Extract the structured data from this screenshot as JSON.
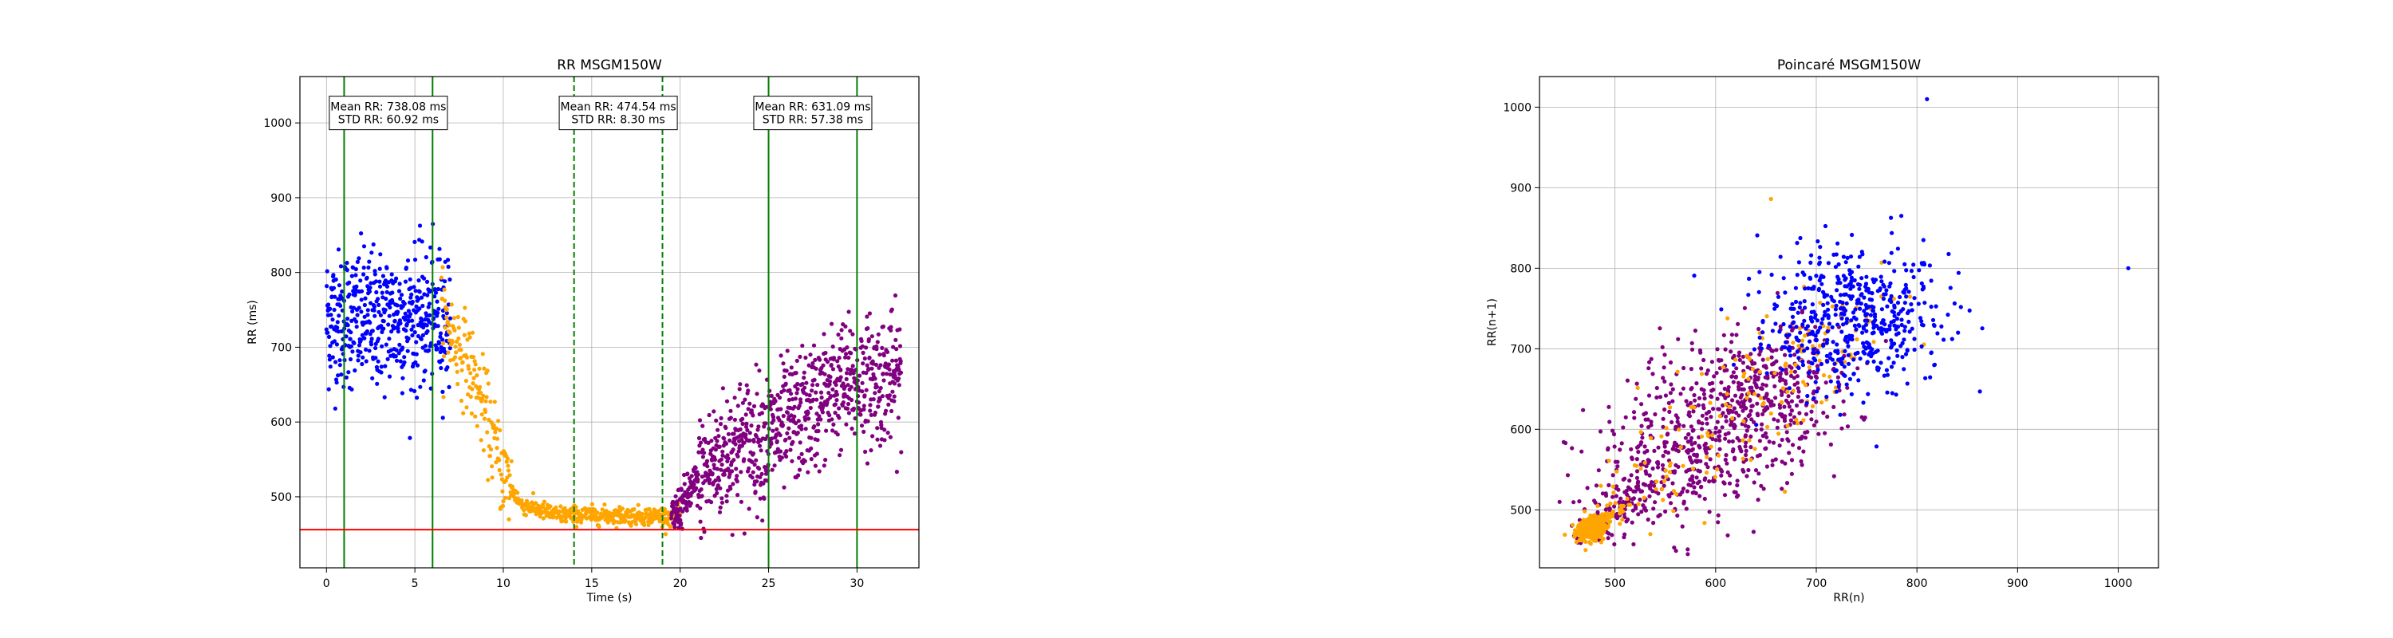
{
  "chart_data": [
    {
      "type": "scatter",
      "title": "RR MSGM150W",
      "xlabel": "Time (s)",
      "ylabel": "RR (ms)",
      "xlim": [
        -1.5,
        33.5
      ],
      "ylim": [
        405,
        1062
      ],
      "xticks": [
        0,
        5,
        10,
        15,
        20,
        25,
        30
      ],
      "yticks": [
        500,
        600,
        700,
        800,
        900,
        1000
      ],
      "grid": true,
      "series": [
        {
          "color": "#0000ff",
          "x_range": [
            0,
            7
          ],
          "y_center": 738,
          "y_spread": 61,
          "count": 520
        },
        {
          "color": "#ffa500",
          "x_range": [
            6.5,
            20
          ],
          "y_profile": [
            [
              6.5,
              740
            ],
            [
              8,
              680
            ],
            [
              9,
              610
            ],
            [
              10,
              530
            ],
            [
              11,
              490
            ],
            [
              13,
              476
            ],
            [
              20,
              474
            ]
          ],
          "count": 560
        },
        {
          "color": "#800080",
          "x_range": [
            19.5,
            32.5
          ],
          "y_profile": [
            [
              19.5,
              470
            ],
            [
              21,
              520
            ],
            [
              23,
              570
            ],
            [
              25,
              580
            ],
            [
              27,
              610
            ],
            [
              29,
              650
            ],
            [
              32.5,
              660
            ]
          ],
          "count": 900
        }
      ],
      "vertical_lines": [
        {
          "x": 1,
          "style": "solid",
          "color": "#008000"
        },
        {
          "x": 6,
          "style": "solid",
          "color": "#008000"
        },
        {
          "x": 14,
          "style": "dashed",
          "color": "#008000"
        },
        {
          "x": 19,
          "style": "dashed",
          "color": "#008000"
        },
        {
          "x": 25,
          "style": "solid",
          "color": "#008000"
        },
        {
          "x": 30,
          "style": "solid",
          "color": "#008000"
        }
      ],
      "horizontal_lines": [
        {
          "y": 456,
          "color": "#ff0000"
        }
      ],
      "annotations": [
        {
          "x": 3.5,
          "y": 1008,
          "lines": [
            "Mean RR: 738.08 ms",
            "STD RR: 60.92 ms"
          ]
        },
        {
          "x": 16.5,
          "y": 1008,
          "lines": [
            "Mean RR: 474.54 ms",
            "STD RR: 8.30 ms"
          ]
        },
        {
          "x": 27.5,
          "y": 1008,
          "lines": [
            "Mean RR: 631.09 ms",
            "STD RR: 57.38 ms"
          ]
        }
      ]
    },
    {
      "type": "scatter",
      "title": "Poincaré MSGM150W",
      "xlabel": "RR(n)",
      "ylabel": "RR(n+1)",
      "xlim": [
        425,
        1040
      ],
      "ylim": [
        428,
        1038
      ],
      "xticks": [
        500,
        600,
        700,
        800,
        900,
        1000
      ],
      "yticks": [
        500,
        600,
        700,
        800,
        900,
        1000
      ],
      "grid": true,
      "series": [
        {
          "color": "#0000ff",
          "x_range": [
            600,
            895
          ],
          "count": 520
        },
        {
          "color": "#ffa500",
          "x_range": [
            455,
            850
          ],
          "count": 300
        },
        {
          "color": "#800080",
          "x_range": [
            460,
            800
          ],
          "count": 900
        }
      ],
      "outliers": [
        {
          "x": 1010,
          "y": 800,
          "color": "#0000ff"
        },
        {
          "x": 810,
          "y": 1010,
          "color": "#0000ff"
        },
        {
          "x": 655,
          "y": 886,
          "color": "#ffa500"
        }
      ]
    }
  ]
}
